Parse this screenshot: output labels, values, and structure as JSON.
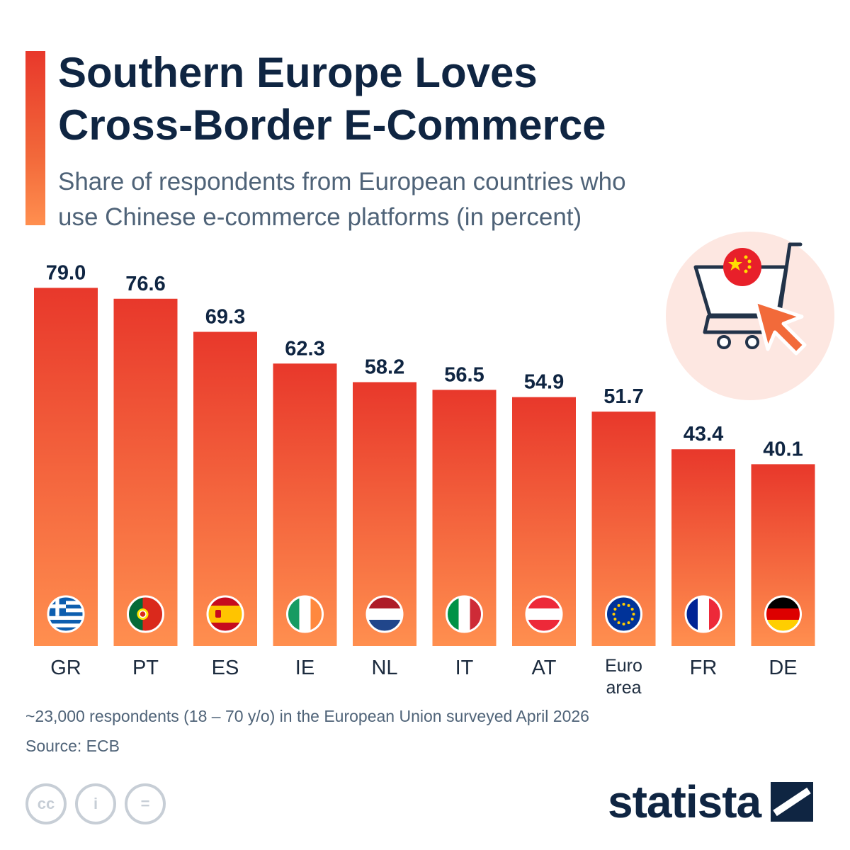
{
  "header": {
    "title_lines": [
      "Southern Europe Loves",
      "Cross-Border E-Commerce"
    ],
    "subtitle_lines": [
      "Share of respondents from European countries who",
      "use Chinese e-commerce platforms (in percent)"
    ]
  },
  "colors": {
    "bar_top": "#e8382b",
    "bar_bottom": "#ff8f4f",
    "text_dark": "#0f2542",
    "badge_bg": "#fde7e1"
  },
  "chart_data": {
    "type": "bar",
    "categories": [
      "GR",
      "PT",
      "ES",
      "IE",
      "NL",
      "IT",
      "AT",
      "Euro area",
      "FR",
      "DE"
    ],
    "category_label_lines": [
      [
        "GR"
      ],
      [
        "PT"
      ],
      [
        "ES"
      ],
      [
        "IE"
      ],
      [
        "NL"
      ],
      [
        "IT"
      ],
      [
        "AT"
      ],
      [
        "Euro",
        "area"
      ],
      [
        "FR"
      ],
      [
        "DE"
      ]
    ],
    "values": [
      79.0,
      76.6,
      69.3,
      62.3,
      58.2,
      56.5,
      54.9,
      51.7,
      43.4,
      40.1
    ],
    "value_labels": [
      "79.0",
      "76.6",
      "69.3",
      "62.3",
      "58.2",
      "56.5",
      "54.9",
      "51.7",
      "43.4",
      "40.1"
    ],
    "flags": [
      "greece-flag-icon",
      "portugal-flag-icon",
      "spain-flag-icon",
      "ireland-flag-icon",
      "netherlands-flag-icon",
      "italy-flag-icon",
      "austria-flag-icon",
      "eu-flag-icon",
      "france-flag-icon",
      "germany-flag-icon"
    ],
    "ylim": [
      0,
      100
    ],
    "grid": false,
    "legend": "none"
  },
  "footer": {
    "note": "~23,000 respondents (18 – 70 y/o) in the European Union surveyed April 2026",
    "source": "Source: ECB",
    "license_icons": [
      "cc-icon",
      "attribution-icon",
      "no-derivatives-icon"
    ],
    "license_glyphs": [
      "cc",
      "i",
      "="
    ],
    "brand": "statista"
  }
}
